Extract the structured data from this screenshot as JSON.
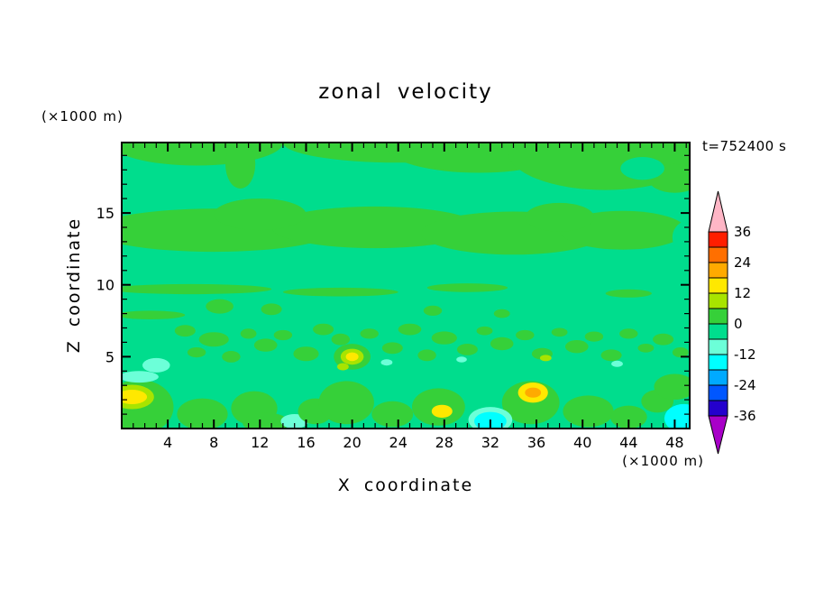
{
  "chart_data": {
    "type": "contour",
    "title": "zonal velocity",
    "timestamp": "t=752400 s",
    "x": {
      "label": "X coordinate",
      "unit": "(×1000 m)",
      "min": 0,
      "max": 49.3,
      "major_ticks": [
        4,
        8,
        12,
        16,
        20,
        24,
        28,
        32,
        36,
        40,
        44,
        48
      ],
      "minor_tick_step": 1
    },
    "z": {
      "label": "Z coordinate",
      "unit": "(×1000 m)",
      "min": 0,
      "max": 19.9,
      "major_ticks": [
        5,
        10,
        15
      ],
      "minor_tick_step": 1
    },
    "colorbar": {
      "tick_labels": [
        36,
        24,
        12,
        0,
        -12,
        -24,
        -36
      ],
      "levels_top_to_bottom": [
        {
          "range": [
            30,
            36
          ],
          "color": "#ff1e00"
        },
        {
          "range": [
            24,
            30
          ],
          "color": "#ff6f00"
        },
        {
          "range": [
            18,
            24
          ],
          "color": "#ffaa00"
        },
        {
          "range": [
            12,
            18
          ],
          "color": "#ffe800"
        },
        {
          "range": [
            6,
            12
          ],
          "color": "#a8e400"
        },
        {
          "range": [
            0,
            6
          ],
          "color": "#36d039"
        },
        {
          "range": [
            -6,
            0
          ],
          "color": "#00dd8d"
        },
        {
          "range": [
            -12,
            -6
          ],
          "color": "#6cffd8"
        },
        {
          "range": [
            -18,
            -12
          ],
          "color": "#00ffff"
        },
        {
          "range": [
            -24,
            -18
          ],
          "color": "#00aaff"
        },
        {
          "range": [
            -30,
            -24
          ],
          "color": "#0057ff"
        },
        {
          "range": [
            -36,
            -30
          ],
          "color": "#2400cd"
        }
      ],
      "over_color": "#ffb6c6",
      "under_color": "#a800c8"
    },
    "palette": {
      "bg": "#00dd8d",
      "green": "#36d039",
      "ygreen": "#a8e400",
      "yellow": "#ffe800",
      "amber": "#ffaa00",
      "aqua": "#6cffd8",
      "cyan": "#00ffff"
    },
    "background_level": "bg",
    "description": "Filled-contour cross-section; field is mostly within -6..+6 (two greens) with green bands near the top and at z=12-15, speckled small anomalies below z=8, and small yellow/amber (+) and aqua/cyan (-) patches near the surface.",
    "features": [
      [
        6.5,
        19.9,
        7.5,
        1.6
      ],
      [
        10.3,
        18.4,
        1.3,
        1.7
      ],
      [
        24,
        19.9,
        10,
        1.4
      ],
      [
        31,
        19.6,
        8,
        1.8
      ],
      [
        42,
        19.3,
        8.5,
        2.7
      ],
      [
        48,
        17.4,
        2.3,
        1.0
      ],
      [
        45.2,
        18.1,
        1.9,
        0.8,
        "bg"
      ],
      [
        8,
        13.8,
        10.5,
        1.5
      ],
      [
        22,
        14.0,
        9,
        1.45
      ],
      [
        34,
        13.6,
        8,
        1.5
      ],
      [
        43.5,
        13.8,
        5.5,
        1.35
      ],
      [
        12,
        14.9,
        4,
        1.1
      ],
      [
        38,
        14.7,
        3,
        1.0
      ],
      [
        49.3,
        13.3,
        1.5,
        1.2,
        "bg"
      ],
      [
        6,
        9.7,
        7,
        0.35
      ],
      [
        19,
        9.5,
        5,
        0.3
      ],
      [
        30,
        9.8,
        3.5,
        0.3
      ],
      [
        44,
        9.4,
        2,
        0.28
      ],
      [
        2.5,
        7.9,
        3,
        0.3
      ],
      [
        8.5,
        8.5,
        1.2,
        0.5
      ],
      [
        13,
        8.3,
        0.9,
        0.4
      ],
      [
        27,
        8.2,
        0.8,
        0.35
      ],
      [
        33,
        8.0,
        0.7,
        0.3
      ],
      [
        5.5,
        6.8,
        0.9,
        0.4
      ],
      [
        8,
        6.2,
        1.3,
        0.5
      ],
      [
        6.5,
        5.3,
        0.8,
        0.35
      ],
      [
        9.5,
        5.0,
        0.8,
        0.4
      ],
      [
        11,
        6.6,
        0.7,
        0.35
      ],
      [
        12.5,
        5.8,
        1.0,
        0.45
      ],
      [
        14,
        6.5,
        0.8,
        0.35
      ],
      [
        16,
        5.2,
        1.1,
        0.5
      ],
      [
        17.5,
        6.9,
        0.9,
        0.4
      ],
      [
        19,
        6.2,
        0.8,
        0.4
      ],
      [
        21.5,
        6.6,
        0.8,
        0.35
      ],
      [
        23.5,
        5.6,
        0.9,
        0.4
      ],
      [
        25,
        6.9,
        1.0,
        0.4
      ],
      [
        26.5,
        5.1,
        0.8,
        0.4
      ],
      [
        28,
        6.3,
        1.1,
        0.45
      ],
      [
        30,
        5.5,
        0.9,
        0.4
      ],
      [
        31.5,
        6.8,
        0.7,
        0.3
      ],
      [
        33,
        5.9,
        1.0,
        0.45
      ],
      [
        35,
        6.5,
        0.8,
        0.35
      ],
      [
        36.5,
        5.2,
        0.9,
        0.4
      ],
      [
        38,
        6.7,
        0.7,
        0.3
      ],
      [
        39.5,
        5.7,
        1.0,
        0.45
      ],
      [
        41,
        6.4,
        0.8,
        0.35
      ],
      [
        42.5,
        5.1,
        0.9,
        0.4
      ],
      [
        44,
        6.6,
        0.8,
        0.35
      ],
      [
        45.5,
        5.6,
        0.7,
        0.3
      ],
      [
        47,
        6.2,
        0.9,
        0.4
      ],
      [
        48.5,
        5.3,
        0.7,
        0.35
      ],
      [
        20,
        5.0,
        1.6,
        0.9
      ],
      [
        20,
        5.0,
        1.0,
        0.55,
        "ygreen"
      ],
      [
        20,
        5.0,
        0.55,
        0.3,
        "yellow"
      ],
      [
        1.5,
        1.5,
        3,
        1.9
      ],
      [
        0.9,
        2.2,
        1.9,
        0.85,
        "ygreen"
      ],
      [
        0.9,
        2.2,
        1.3,
        0.5,
        "yellow"
      ],
      [
        1.5,
        3.6,
        1.7,
        0.4,
        "aqua"
      ],
      [
        3,
        4.4,
        1.2,
        0.5,
        "aqua"
      ],
      [
        7,
        1.0,
        2.2,
        1.1
      ],
      [
        11.5,
        1.4,
        2.0,
        1.2
      ],
      [
        12.5,
        0.4,
        2.0,
        0.7
      ],
      [
        15,
        0.5,
        1.2,
        0.5,
        "aqua"
      ],
      [
        16.8,
        1.2,
        1.5,
        0.9
      ],
      [
        19.5,
        1.8,
        2.4,
        1.5
      ],
      [
        23.5,
        1.0,
        1.8,
        0.9
      ],
      [
        27.5,
        1.5,
        2.3,
        1.3
      ],
      [
        27.8,
        1.2,
        0.9,
        0.45,
        "yellow"
      ],
      [
        35.5,
        1.8,
        2.5,
        1.5
      ],
      [
        35.7,
        2.5,
        1.3,
        0.7,
        "yellow"
      ],
      [
        35.7,
        2.5,
        0.7,
        0.35,
        "amber"
      ],
      [
        40.5,
        1.2,
        2.2,
        1.1
      ],
      [
        44,
        0.8,
        1.6,
        0.8
      ],
      [
        46.5,
        1.9,
        1.4,
        0.8
      ],
      [
        48,
        2.9,
        1.8,
        0.9
      ],
      [
        32,
        0.6,
        1.9,
        0.9,
        "aqua"
      ],
      [
        32,
        0.5,
        1.4,
        0.65,
        "cyan"
      ],
      [
        48.8,
        0.7,
        1.7,
        1.0,
        "cyan"
      ],
      [
        23,
        4.6,
        0.5,
        0.22,
        "aqua"
      ],
      [
        29.5,
        4.8,
        0.45,
        0.2,
        "aqua"
      ],
      [
        43,
        4.5,
        0.5,
        0.22,
        "aqua"
      ],
      [
        19.2,
        4.3,
        0.5,
        0.25,
        "ygreen"
      ],
      [
        36.8,
        4.9,
        0.5,
        0.22,
        "ygreen"
      ]
    ]
  }
}
